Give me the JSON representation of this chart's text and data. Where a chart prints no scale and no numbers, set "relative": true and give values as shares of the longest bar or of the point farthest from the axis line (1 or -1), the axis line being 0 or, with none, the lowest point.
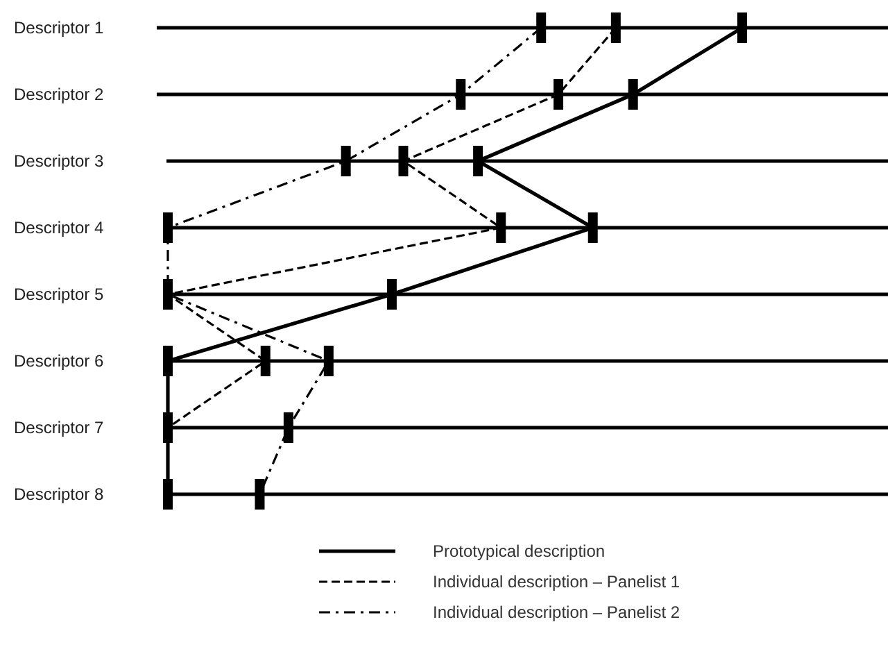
{
  "chart_data": {
    "type": "line",
    "orientation": "horizontal",
    "relative": true,
    "marker": "square",
    "legend": "bottom",
    "grid": "y",
    "categories": [
      "Descriptor 1",
      "Descriptor 2",
      "Descriptor 3",
      "Descriptor 4",
      "Descriptor 5",
      "Descriptor 6",
      "Descriptor 7",
      "Descriptor 8"
    ],
    "series": [
      {
        "name": "Prototypical description",
        "color": "#000000",
        "line_style": "solid",
        "values": [
          1,
          0.81,
          0.54,
          0.74,
          0.39,
          0,
          0,
          0
        ]
      },
      {
        "name": "Individual description – Panelist 1",
        "color": "#000000",
        "line_style": "dashed",
        "values": [
          0.78,
          0.68,
          0.41,
          0.58,
          0,
          0.17,
          0,
          null
        ]
      },
      {
        "name": "Individual description – Panelist 2",
        "color": "#000000",
        "line_style": "dashdot",
        "values": [
          0.65,
          0.51,
          0.31,
          0,
          0,
          0.28,
          0.21,
          0.16
        ]
      }
    ]
  }
}
